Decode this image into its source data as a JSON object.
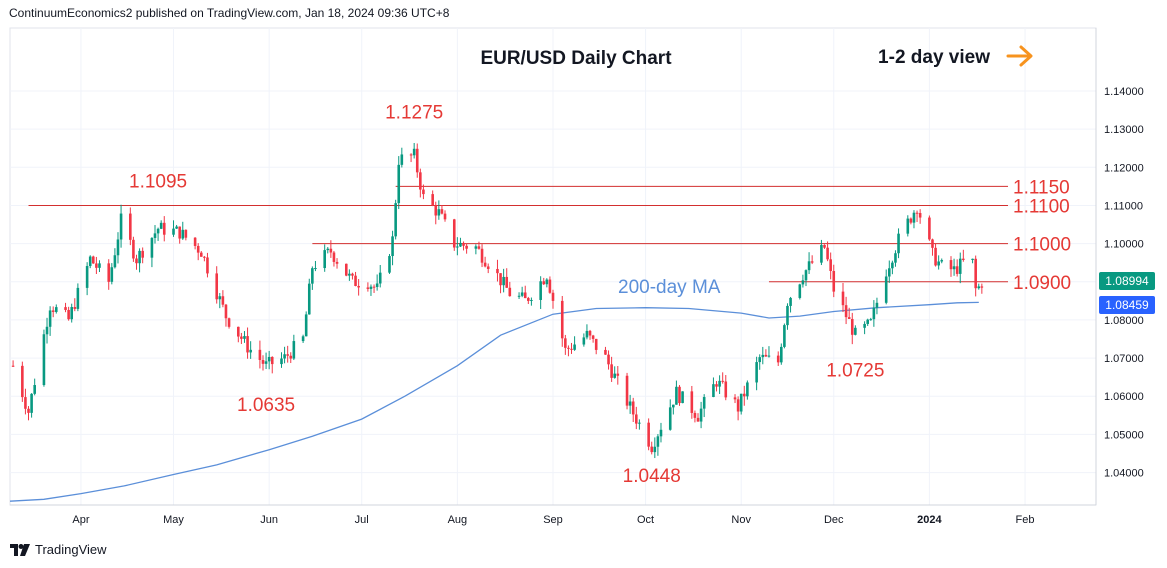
{
  "publisher": "ContinuumEconomics2 published on TradingView.com, Jan 18, 2024 09:36 UTC+8",
  "brand": "TradingView",
  "chart_data": {
    "type": "candlestick",
    "title": "EUR/USD Daily Chart",
    "view_note": "1-2 day view",
    "view_arrow_color": "#f7931e",
    "y_ticks": [
      "1.14000",
      "1.13000",
      "1.12000",
      "1.11000",
      "1.10000",
      "1.09000",
      "1.08000",
      "1.07000",
      "1.06000",
      "1.05000",
      "1.04000"
    ],
    "y_tick_values": [
      1.14,
      1.13,
      1.12,
      1.11,
      1.1,
      1.09,
      1.08,
      1.07,
      1.06,
      1.05,
      1.04
    ],
    "ylim": [
      1.0315,
      1.1565
    ],
    "x_ticks": [
      "Apr",
      "May",
      "Jun",
      "Jul",
      "Aug",
      "Sep",
      "Oct",
      "Nov",
      "Dec",
      "2024",
      "Feb"
    ],
    "x_tick_dates": [
      "2023-04-01",
      "2023-05-01",
      "2023-06-01",
      "2023-07-01",
      "2023-08-01",
      "2023-09-01",
      "2023-10-01",
      "2023-11-01",
      "2023-12-01",
      "2024-01-01",
      "2024-02-01"
    ],
    "xlim": [
      "2023-03-09",
      "2024-02-24"
    ],
    "grid": true,
    "up_color": "#089981",
    "down_color": "#f23645",
    "ma_color": "#5b8fd9",
    "level_color": "#d32f2f",
    "annotation_color": "#e53935",
    "levels": [
      {
        "label": "1.1150",
        "value": 1.115,
        "from": "2023-07-12"
      },
      {
        "label": "1.1100",
        "value": 1.11,
        "from": "2023-03-15"
      },
      {
        "label": "1.1000",
        "value": 1.1,
        "from": "2023-06-15"
      },
      {
        "label": "1.0900",
        "value": 1.09,
        "from": "2023-11-10"
      }
    ],
    "annotations": [
      {
        "text": "1.1275",
        "date": "2023-07-18",
        "value": 1.1275
      },
      {
        "text": "1.1095",
        "date": "2023-04-26",
        "value": 1.1095
      },
      {
        "text": "1.0635",
        "date": "2023-05-31",
        "value": 1.0635
      },
      {
        "text": "1.0448",
        "date": "2023-10-03",
        "value": 1.0448
      },
      {
        "text": "1.0725",
        "date": "2023-12-08",
        "value": 1.0725
      }
    ],
    "ma_label": "200-day MA",
    "price_badges": [
      {
        "label": "1.08994",
        "value": 1.08994,
        "color": "#089981"
      },
      {
        "label": "1.08459",
        "value": 1.08459,
        "color": "#2962ff"
      }
    ],
    "series": [
      {
        "name": "200-day MA",
        "type": "line",
        "points": [
          [
            "2023-03-09",
            1.0325
          ],
          [
            "2023-03-20",
            1.033
          ],
          [
            "2023-04-01",
            1.0345
          ],
          [
            "2023-04-15",
            1.0365
          ],
          [
            "2023-05-01",
            1.0395
          ],
          [
            "2023-05-15",
            1.042
          ],
          [
            "2023-06-01",
            1.046
          ],
          [
            "2023-06-15",
            1.0495
          ],
          [
            "2023-07-01",
            1.054
          ],
          [
            "2023-07-15",
            1.06
          ],
          [
            "2023-08-01",
            1.068
          ],
          [
            "2023-08-15",
            1.076
          ],
          [
            "2023-09-01",
            1.0815
          ],
          [
            "2023-09-15",
            1.083
          ],
          [
            "2023-10-01",
            1.0832
          ],
          [
            "2023-10-15",
            1.083
          ],
          [
            "2023-11-01",
            1.0818
          ],
          [
            "2023-11-10",
            1.0805
          ],
          [
            "2023-11-20",
            1.081
          ],
          [
            "2023-12-01",
            1.0822
          ],
          [
            "2023-12-15",
            1.0832
          ],
          [
            "2024-01-01",
            1.084
          ],
          [
            "2024-01-10",
            1.0845
          ],
          [
            "2024-01-17",
            1.0846
          ]
        ]
      },
      {
        "name": "EUR/USD",
        "type": "candles",
        "anchors": [
          [
            "2023-03-10",
            1.068
          ],
          [
            "2023-03-15",
            1.056
          ],
          [
            "2023-03-22",
            1.084
          ],
          [
            "2023-03-28",
            1.08
          ],
          [
            "2023-04-04",
            1.096
          ],
          [
            "2023-04-10",
            1.09
          ],
          [
            "2023-04-14",
            1.106
          ],
          [
            "2023-04-19",
            1.096
          ],
          [
            "2023-04-26",
            1.104
          ],
          [
            "2023-05-03",
            1.103
          ],
          [
            "2023-05-10",
            1.098
          ],
          [
            "2023-05-18",
            1.081
          ],
          [
            "2023-05-25",
            1.073
          ],
          [
            "2023-05-31",
            1.068
          ],
          [
            "2023-06-06",
            1.07
          ],
          [
            "2023-06-12",
            1.075
          ],
          [
            "2023-06-15",
            1.094
          ],
          [
            "2023-06-21",
            1.098
          ],
          [
            "2023-06-28",
            1.09
          ],
          [
            "2023-07-03",
            1.09
          ],
          [
            "2023-07-06",
            1.088
          ],
          [
            "2023-07-11",
            1.101
          ],
          [
            "2023-07-13",
            1.122
          ],
          [
            "2023-07-18",
            1.123
          ],
          [
            "2023-07-21",
            1.112
          ],
          [
            "2023-07-26",
            1.108
          ],
          [
            "2023-07-31",
            1.1
          ],
          [
            "2023-08-07",
            1.099
          ],
          [
            "2023-08-11",
            1.095
          ],
          [
            "2023-08-18",
            1.087
          ],
          [
            "2023-08-23",
            1.085
          ],
          [
            "2023-08-30",
            1.092
          ],
          [
            "2023-09-05",
            1.072
          ],
          [
            "2023-09-12",
            1.076
          ],
          [
            "2023-09-18",
            1.07
          ],
          [
            "2023-09-26",
            1.057
          ],
          [
            "2023-10-03",
            1.047
          ],
          [
            "2023-10-11",
            1.061
          ],
          [
            "2023-10-18",
            1.055
          ],
          [
            "2023-10-24",
            1.064
          ],
          [
            "2023-10-31",
            1.057
          ],
          [
            "2023-11-07",
            1.07
          ],
          [
            "2023-11-13",
            1.069
          ],
          [
            "2023-11-16",
            1.085
          ],
          [
            "2023-11-21",
            1.092
          ],
          [
            "2023-11-28",
            1.099
          ],
          [
            "2023-12-01",
            1.088
          ],
          [
            "2023-12-08",
            1.076
          ],
          [
            "2023-12-13",
            1.079
          ],
          [
            "2023-12-18",
            1.093
          ],
          [
            "2023-12-22",
            1.101
          ],
          [
            "2023-12-28",
            1.11
          ],
          [
            "2024-01-02",
            1.097
          ],
          [
            "2024-01-05",
            1.094
          ],
          [
            "2024-01-09",
            1.093
          ],
          [
            "2024-01-12",
            1.095
          ],
          [
            "2024-01-15",
            1.095
          ],
          [
            "2024-01-16",
            1.088
          ],
          [
            "2024-01-17",
            1.0885
          ],
          [
            "2024-01-18",
            1.0899
          ]
        ]
      }
    ]
  }
}
